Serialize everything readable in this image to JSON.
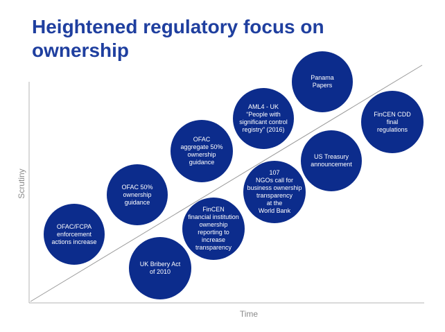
{
  "title": [
    "Heightened regulatory focus on",
    "ownership"
  ],
  "axes": {
    "y_label": "Scrutiny",
    "x_label": "Time"
  },
  "colors": {
    "title": "#1f3f9f",
    "bubble": "#0c2c8c",
    "axis": "#9a9a9a"
  },
  "events": [
    {
      "lines": [
        "OFAC/FCPA",
        "enforcement",
        "actions increase"
      ]
    },
    {
      "lines": [
        "OFAC 50%",
        "ownership",
        "guidance"
      ]
    },
    {
      "lines": [
        "UK Bribery Act",
        "of 2010"
      ]
    },
    {
      "lines": [
        "FinCEN",
        "financial institution",
        "ownership",
        "reporting to",
        "increase",
        "transparency"
      ]
    },
    {
      "lines": [
        "OFAC",
        "aggregate 50%",
        "ownership",
        "guidance"
      ]
    },
    {
      "lines": [
        "AML4 - UK",
        "“People with",
        "significant control",
        "registry” (2016)"
      ]
    },
    {
      "lines": [
        "107",
        "NGOs call for",
        "business ownership",
        "transparency",
        "at the",
        "World Bank"
      ]
    },
    {
      "lines": [
        "Panama",
        "Papers"
      ]
    },
    {
      "lines": [
        "US Treasury",
        "announcement"
      ]
    },
    {
      "lines": [
        "FinCEN CDD",
        "final",
        "regulations"
      ]
    }
  ]
}
